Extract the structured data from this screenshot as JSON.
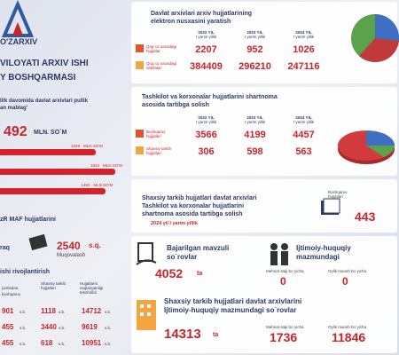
{
  "brand": {
    "logo": "O'ZARXIV",
    "title": [
      "VILOYATI ARXIV ISHI",
      "Y BOSHQARMASI"
    ]
  },
  "revenue": {
    "caption": [
      "llik davomida davlat arxivlari pullik",
      "an mablag'"
    ],
    "total": 492,
    "unit": "MLN. SO`M",
    "bars": [
      1349,
      1624,
      1492
    ],
    "bar_unit": "MLN SO'M"
  },
  "binding": {
    "caption": "zR MAF hujjatlarini",
    "item": "raq",
    "value": 2540,
    "unit": "s.q.",
    "label": "Muqovalash"
  },
  "development": {
    "title": "ishi rivojlantirish",
    "intro": "jumladan,",
    "headers": [
      "boshqaruv",
      "Shaxsiy tarkib hujjatlari",
      "Hujjatlarni saqlanganligi tekshirildi"
    ],
    "unit": "s.b.",
    "rows": [
      [
        901,
        1118,
        14712
      ],
      [
        455,
        3440,
        9619
      ],
      [
        455,
        618,
        10951
      ]
    ]
  },
  "years": [
    [
      "2022 YIL",
      "I yarim yillik"
    ],
    [
      "2023 YIL",
      "I yarim yillik"
    ],
    [
      "2024 YIL",
      "I yarim yillik"
    ]
  ],
  "digitization": {
    "title": [
      "Davlat arxivlari arxiv hujjatlarining",
      "elektron nusxasini yaratish"
    ],
    "rows": [
      {
        "label": [
          "Qog`oz asosdagi",
          "hujjatlar"
        ],
        "values": [
          2207,
          952,
          1026
        ]
      },
      {
        "label": [
          "Qog`oz asosdagi",
          "sahifalar"
        ],
        "values": [
          384409,
          296210,
          247116
        ]
      }
    ]
  },
  "contracts": {
    "title": [
      "Tashkilot va korxonalar hujjatlarini shartnoma",
      "asosida tartibga solish"
    ],
    "rows": [
      {
        "label": [
          "Boshqaruv",
          "hujjatlari"
        ],
        "values": [
          3566,
          4199,
          4457
        ]
      },
      {
        "label": [
          "Shaxsiy tarkib",
          "hujjatlari"
        ],
        "values": [
          306,
          598,
          563
        ]
      }
    ]
  },
  "personnel": {
    "title": [
      "Shaxsiy tarkib hujjatlari davlat arxivlari",
      "Tashkilot va korxonalar hujjatlarini",
      "shartnoma asosida tartibga solish"
    ],
    "period": "2024 yil I yarim yillik",
    "label": [
      "Boshqaruv",
      "hujjatlari"
    ],
    "value": 443
  },
  "requests": {
    "title": [
      "Bajarilgan mavzuli",
      "so`rovlar"
    ],
    "value": 4052,
    "unit": "ta",
    "social": [
      "Ijtimoiy-huquqiy",
      "mazmundagi"
    ],
    "items": [
      {
        "label": "Mehnat staji bo`yicha",
        "value": 0
      },
      {
        "label": "Oylik maosh bo`yicha",
        "value": 0
      }
    ]
  },
  "social": {
    "title": [
      "Shaxsiy tarkib hujjatlari davlat arxivlarini",
      "Ijtimoiy-huquqiy mazmundagi so`rovlar"
    ],
    "value": 14313,
    "unit": "ta",
    "items": [
      {
        "label": "Mehnat staji bo`yicha",
        "value": 1736
      },
      {
        "label": "Oylik maosh bo`yicha",
        "value": 11846
      }
    ]
  }
}
